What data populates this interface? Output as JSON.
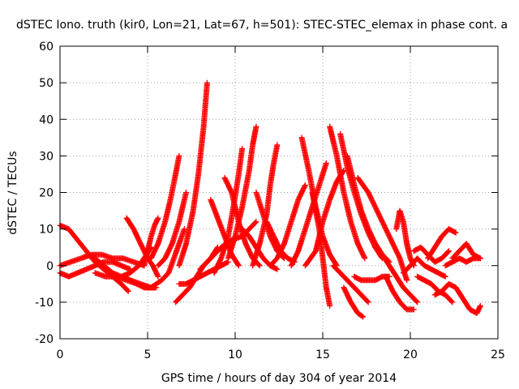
{
  "chart_data": {
    "type": "scatter",
    "title": "dSTEC Iono. truth (kir0, Lon=21, Lat=67, h=501): STEC-STEC_elemax in phase cont. a",
    "xlabel": "GPS time / hours of day 304 of year 2014",
    "ylabel": "dSTEC  / TECUs",
    "xlim": [
      0,
      25
    ],
    "ylim": [
      -20,
      60
    ],
    "xticks": [
      0,
      5,
      10,
      15,
      20,
      25
    ],
    "yticks": [
      -20,
      -10,
      0,
      10,
      20,
      30,
      40,
      50,
      60
    ],
    "grid": true,
    "marker": "+",
    "color": "#ff0000",
    "series": [
      {
        "x": [
          0.0,
          0.5,
          1.0,
          1.5,
          2.0,
          2.5,
          3.0,
          3.5,
          3.9
        ],
        "y": [
          11,
          10,
          7,
          4,
          1,
          -1,
          -3,
          -5,
          -7
        ]
      },
      {
        "x": [
          0.0,
          0.5,
          1.0,
          1.5,
          2.0,
          2.5,
          3.0,
          3.5,
          4.0
        ],
        "y": [
          -2,
          -3,
          -2,
          -1,
          0,
          1,
          1,
          0,
          -1
        ]
      },
      {
        "x": [
          0.0,
          0.6,
          1.2,
          1.8,
          2.4,
          3.0,
          3.6,
          4.2,
          4.8
        ],
        "y": [
          0,
          1,
          2,
          3,
          3,
          2,
          2,
          1,
          0
        ]
      },
      {
        "x": [
          1.5,
          2.0,
          2.5,
          3.0,
          3.5,
          4.0,
          4.5,
          4.8,
          5.2
        ],
        "y": [
          3,
          2,
          0,
          -2,
          -3,
          -2,
          0,
          2,
          5
        ]
      },
      {
        "x": [
          2.0,
          2.6,
          3.2,
          3.8,
          4.4,
          5.0,
          5.5
        ],
        "y": [
          -2,
          -3,
          -3,
          -4,
          -5,
          -6,
          -6
        ]
      },
      {
        "x": [
          3.8,
          4.2,
          4.6,
          5.0,
          5.3,
          5.6
        ],
        "y": [
          13,
          10,
          6,
          2,
          0,
          -3
        ]
      },
      {
        "x": [
          3.6,
          4.0,
          4.4,
          4.8,
          5.1,
          5.4
        ],
        "y": [
          -3,
          -4,
          -5,
          -6,
          -6,
          -6
        ]
      },
      {
        "x": [
          4.8,
          5.0,
          5.2,
          5.4,
          5.6
        ],
        "y": [
          0,
          4,
          8,
          11,
          13
        ]
      },
      {
        "x": [
          4.0,
          4.6,
          5.2,
          5.8,
          6.2,
          6.5,
          6.8,
          7.1
        ],
        "y": [
          -4,
          -5,
          -6,
          -4,
          -2,
          2,
          6,
          10
        ]
      },
      {
        "x": [
          5.2,
          5.6,
          6.0,
          6.3,
          6.6,
          6.8
        ],
        "y": [
          2,
          6,
          12,
          18,
          25,
          30
        ]
      },
      {
        "x": [
          5.6,
          6.0,
          6.4,
          6.8,
          7.2
        ],
        "y": [
          0,
          2,
          6,
          12,
          20
        ]
      },
      {
        "x": [
          6.8,
          7.2,
          7.6,
          7.9,
          8.2,
          8.4
        ],
        "y": [
          0,
          6,
          15,
          25,
          38,
          50
        ]
      },
      {
        "x": [
          6.6,
          7.0,
          7.4,
          7.8,
          8.2,
          8.6,
          9.0
        ],
        "y": [
          -10,
          -8,
          -6,
          -3,
          0,
          2,
          5
        ]
      },
      {
        "x": [
          6.8,
          7.2,
          7.6,
          8.0,
          8.4,
          8.8,
          9.2,
          9.6
        ],
        "y": [
          -5,
          -5,
          -4,
          -3,
          -2,
          -1,
          0,
          1
        ]
      },
      {
        "x": [
          8.6,
          9.0,
          9.4,
          9.8,
          10.2
        ],
        "y": [
          18,
          13,
          8,
          3,
          0
        ]
      },
      {
        "x": [
          8.0,
          8.6,
          9.2,
          9.8,
          10.4,
          10.8,
          11.2
        ],
        "y": [
          -1,
          2,
          5,
          7,
          8,
          10,
          12
        ]
      },
      {
        "x": [
          8.8,
          9.2,
          9.6,
          9.9,
          10.2,
          10.4
        ],
        "y": [
          -2,
          2,
          8,
          16,
          25,
          32
        ]
      },
      {
        "x": [
          9.6,
          10.0,
          10.4,
          10.8,
          11.0,
          11.2
        ],
        "y": [
          2,
          8,
          16,
          26,
          33,
          38
        ]
      },
      {
        "x": [
          9.4,
          9.8,
          10.2,
          10.6,
          11.0,
          11.4
        ],
        "y": [
          24,
          20,
          12,
          6,
          2,
          0
        ]
      },
      {
        "x": [
          10.4,
          10.8,
          11.2,
          11.6,
          12.0,
          12.4
        ],
        "y": [
          10,
          8,
          5,
          2,
          0,
          -1
        ]
      },
      {
        "x": [
          11.0,
          11.4,
          11.8,
          12.0,
          12.2,
          12.4
        ],
        "y": [
          0,
          6,
          14,
          22,
          28,
          33
        ]
      },
      {
        "x": [
          11.2,
          11.6,
          12.0,
          12.4,
          12.8
        ],
        "y": [
          20,
          14,
          8,
          4,
          2
        ]
      },
      {
        "x": [
          11.8,
          12.2,
          12.6,
          13.0,
          13.4
        ],
        "y": [
          12,
          8,
          4,
          2,
          1
        ]
      },
      {
        "x": [
          12.0,
          12.4,
          12.8,
          13.2,
          13.6,
          14.0
        ],
        "y": [
          0,
          2,
          6,
          12,
          18,
          22
        ]
      },
      {
        "x": [
          13.2,
          13.6,
          14.0,
          14.4,
          14.8,
          15.2
        ],
        "y": [
          0,
          4,
          10,
          16,
          22,
          28
        ]
      },
      {
        "x": [
          13.8,
          14.2,
          14.6,
          15.0,
          15.4,
          15.8
        ],
        "y": [
          35,
          26,
          16,
          8,
          3,
          0
        ]
      },
      {
        "x": [
          14.0,
          14.6,
          15.0,
          15.4,
          15.8,
          16.2
        ],
        "y": [
          0,
          4,
          12,
          18,
          23,
          26
        ]
      },
      {
        "x": [
          14.4,
          14.8,
          15.0,
          15.2,
          15.4
        ],
        "y": [
          20,
          10,
          2,
          -6,
          -11
        ]
      },
      {
        "x": [
          15.4,
          15.8,
          16.2,
          16.6,
          17.0,
          17.4
        ],
        "y": [
          38,
          30,
          20,
          12,
          6,
          2
        ]
      },
      {
        "x": [
          15.6,
          16.0,
          16.4,
          16.8,
          17.2,
          17.6
        ],
        "y": [
          0,
          -2,
          -4,
          -6,
          -8,
          -10
        ]
      },
      {
        "x": [
          16.0,
          16.4,
          16.8,
          17.2,
          17.6,
          18.0,
          18.4
        ],
        "y": [
          36,
          27,
          20,
          14,
          9,
          5,
          2
        ]
      },
      {
        "x": [
          16.4,
          16.8,
          17.2,
          17.6,
          18.0,
          18.4,
          18.8
        ],
        "y": [
          30,
          22,
          15,
          10,
          6,
          3,
          1
        ]
      },
      {
        "x": [
          16.2,
          16.6,
          17.0,
          17.3
        ],
        "y": [
          -6,
          -10,
          -13,
          -14
        ]
      },
      {
        "x": [
          16.8,
          17.2,
          17.6,
          18.0,
          18.4,
          18.8
        ],
        "y": [
          -3,
          -4,
          -4,
          -4,
          -3,
          -3
        ]
      },
      {
        "x": [
          17.0,
          17.6,
          18.2,
          18.8,
          19.4,
          19.8
        ],
        "y": [
          24,
          20,
          14,
          8,
          2,
          -4
        ]
      },
      {
        "x": [
          18.0,
          18.4,
          18.8,
          19.2,
          19.6,
          20.0,
          20.4
        ],
        "y": [
          5,
          3,
          0,
          -3,
          -6,
          -8,
          -10
        ]
      },
      {
        "x": [
          18.6,
          19.0,
          19.4,
          19.8,
          20.2
        ],
        "y": [
          -3,
          -7,
          -10,
          -12,
          -12
        ]
      },
      {
        "x": [
          19.2,
          19.4,
          19.6,
          19.8,
          20.0,
          20.2
        ],
        "y": [
          10,
          15,
          12,
          6,
          2,
          0
        ]
      },
      {
        "x": [
          19.6,
          20.0,
          20.4,
          20.8,
          21.2,
          21.6,
          22.0
        ],
        "y": [
          -2,
          0,
          2,
          0,
          -1,
          -2,
          -3
        ]
      },
      {
        "x": [
          20.4,
          20.8,
          21.2,
          21.6,
          22.0,
          22.4
        ],
        "y": [
          -3,
          -4,
          -5,
          -7,
          -8,
          -10
        ]
      },
      {
        "x": [
          20.2,
          20.6,
          21.0,
          21.4,
          21.8,
          22.2
        ],
        "y": [
          4,
          5,
          3,
          1,
          2,
          4
        ]
      },
      {
        "x": [
          21.0,
          21.4,
          21.8,
          22.2,
          22.6
        ],
        "y": [
          2,
          5,
          8,
          10,
          9
        ]
      },
      {
        "x": [
          21.4,
          21.8,
          22.2,
          22.6,
          23.0,
          23.4,
          23.8,
          24.0
        ],
        "y": [
          -8,
          -7,
          -5,
          -6,
          -9,
          -12,
          -13,
          -11
        ]
      },
      {
        "x": [
          22.4,
          22.8,
          23.2,
          23.6,
          24.0
        ],
        "y": [
          2,
          4,
          6,
          3,
          2
        ]
      },
      {
        "x": [
          22.0,
          22.4,
          22.8,
          23.2,
          23.6,
          24.0
        ],
        "y": [
          0,
          1,
          2,
          1,
          2,
          2
        ]
      }
    ]
  }
}
